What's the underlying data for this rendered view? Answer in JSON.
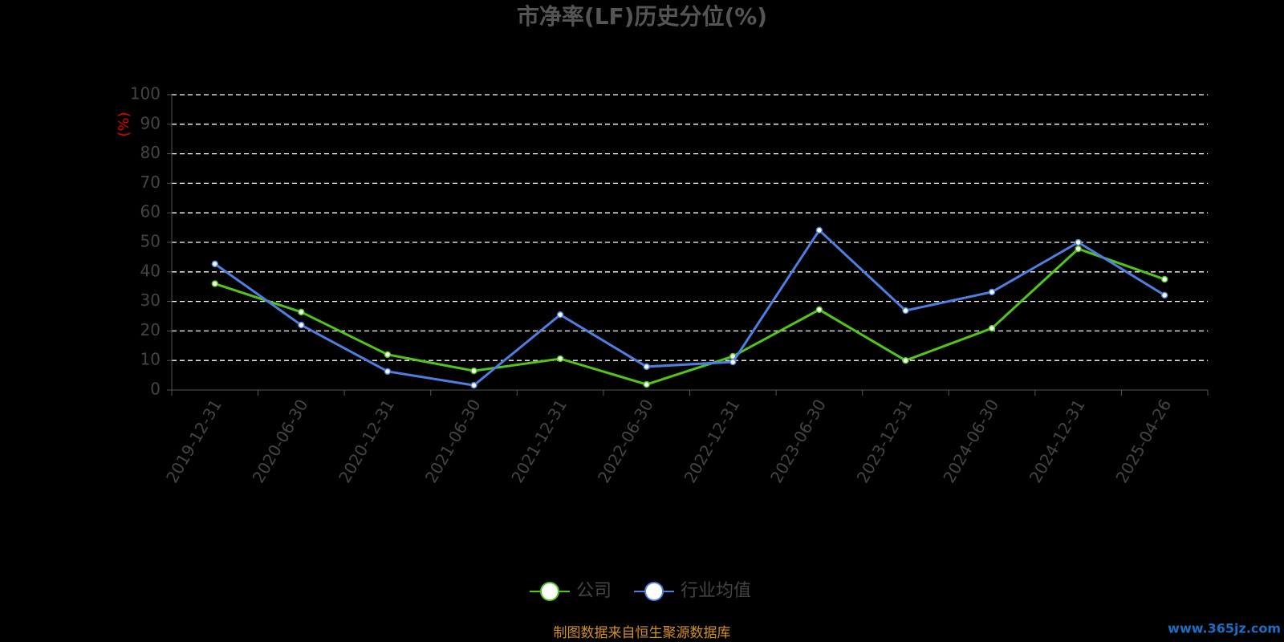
{
  "chart_data": {
    "type": "line",
    "title": "市净率(LF)历史分位(%)",
    "y_label": "(%)",
    "categories": [
      "2019-12-31",
      "2020-06-30",
      "2020-12-31",
      "2021-06-30",
      "2021-12-31",
      "2022-06-30",
      "2022-12-31",
      "2023-06-30",
      "2023-12-31",
      "2024-06-30",
      "2024-12-31",
      "2025-04-26"
    ],
    "series": [
      {
        "name": "公司",
        "color": "#52c41a",
        "values": [
          36,
          26.4,
          12,
          6.5,
          10.6,
          1.9,
          11.4,
          27.2,
          10,
          20.9,
          47.8,
          37.5
        ]
      },
      {
        "name": "行业均值",
        "color": "#4e7fe0",
        "values": [
          42.7,
          22,
          6.3,
          1.6,
          25.5,
          7.9,
          9.5,
          54.1,
          26.9,
          33.2,
          50,
          32.1
        ]
      }
    ],
    "ylim": [
      0,
      100
    ],
    "yticks": [
      0,
      10,
      20,
      30,
      40,
      50,
      60,
      70,
      80,
      90,
      100
    ],
    "grid": true,
    "legend": "bottom",
    "source": "制图数据来自恒生聚源数据库",
    "watermark": "www.365jz.com"
  }
}
